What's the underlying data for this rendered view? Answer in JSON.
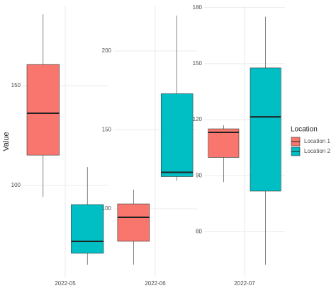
{
  "chart_data": {
    "type": "boxplot",
    "y_label": "Value",
    "legend_title": "Location",
    "grid": true,
    "series": [
      {
        "name": "Location 1",
        "color": "#F8766D"
      },
      {
        "name": "Location 2",
        "color": "#00BFC4"
      }
    ],
    "panels": [
      {
        "categories": [
          "2022-05"
        ],
        "ylim": [
          53.9,
          190.1
        ],
        "yticks": [
          100,
          150
        ],
        "boxes": [
          {
            "low": 94.3,
            "q1": 115.2,
            "median": 136.2,
            "q3": 160.6,
            "high": 185.8
          },
          {
            "low": 60.3,
            "q1": 66.0,
            "median": 72.0,
            "q3": 90.4,
            "high": 109.2
          }
        ]
      },
      {
        "categories": [
          "2022-06"
        ],
        "ylim": [
          56.5,
          228.7
        ],
        "yticks": [
          100,
          150,
          200
        ],
        "boxes": [
          {
            "low": 64.6,
            "q1": 79.4,
            "median": 94.6,
            "q3": 103.1,
            "high": 112.1
          },
          {
            "low": 117.7,
            "q1": 120.4,
            "median": 123.1,
            "q3": 172.9,
            "high": 222.4
          }
        ]
      },
      {
        "categories": [
          "2022-07"
        ],
        "ylim": [
          35.6,
          181
        ],
        "yticks": [
          60,
          90,
          120,
          150,
          180
        ],
        "boxes": [
          {
            "low": 86.6,
            "q1": 99.8,
            "median": 113.2,
            "q3": 115.1,
            "high": 117
          },
          {
            "low": 42.4,
            "q1": 81.8,
            "median": 121.5,
            "q3": 147.7,
            "high": 175.1
          }
        ]
      }
    ]
  }
}
